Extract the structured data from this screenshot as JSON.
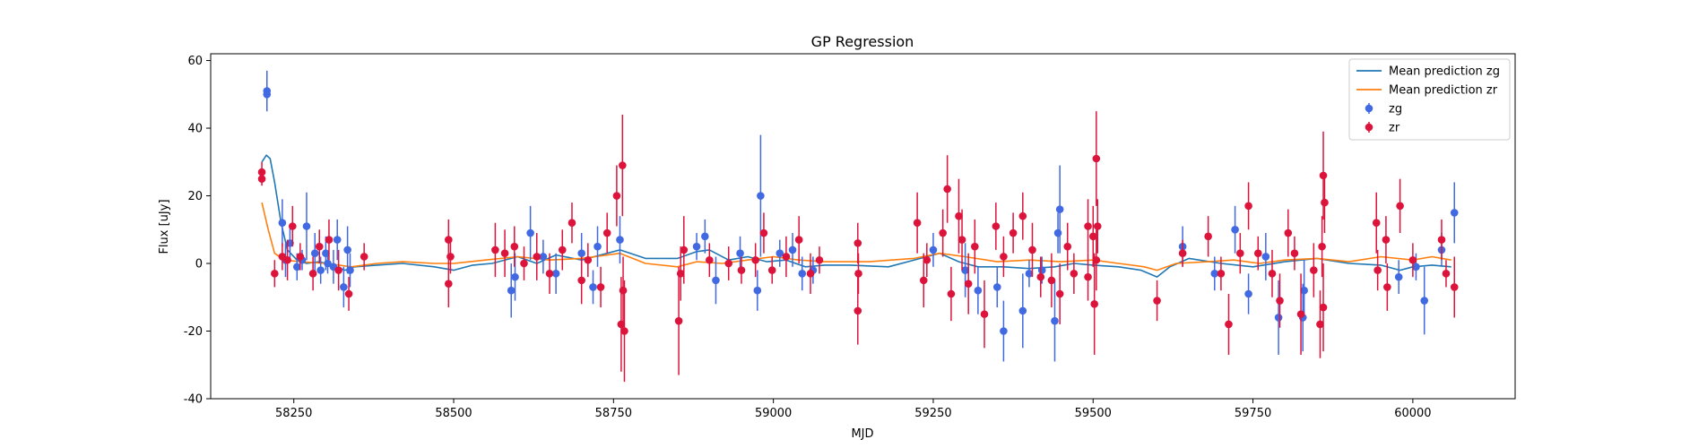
{
  "chart_data": {
    "type": "scatter",
    "title": "GP Regression",
    "xlabel": "MJD",
    "ylabel": "Flux [uJy]",
    "xlim": [
      58120,
      60160
    ],
    "ylim": [
      -40,
      62
    ],
    "xticks": [
      58250,
      58500,
      58750,
      59000,
      59250,
      59500,
      59750,
      60000
    ],
    "yticks": [
      -40,
      -20,
      0,
      20,
      40,
      60
    ],
    "grid": false,
    "legend_position": "top-right",
    "legend": [
      {
        "label": "Mean prediction zg",
        "kind": "line",
        "color": "#1f77b4"
      },
      {
        "label": "Mean prediction zr",
        "kind": "line",
        "color": "#ff7f0e"
      },
      {
        "label": "zg",
        "kind": "errorbar",
        "color": "#4169e1"
      },
      {
        "label": "zr",
        "kind": "errorbar",
        "color": "#dc143c"
      }
    ],
    "lines": [
      {
        "name": "Mean prediction zg",
        "color": "#1f77b4",
        "points": [
          [
            58200,
            30
          ],
          [
            58207,
            32
          ],
          [
            58213,
            31
          ],
          [
            58220,
            24
          ],
          [
            58230,
            12
          ],
          [
            58240,
            4
          ],
          [
            58255,
            1
          ],
          [
            58270,
            0
          ],
          [
            58290,
            0.5
          ],
          [
            58310,
            -0.5
          ],
          [
            58330,
            -2
          ],
          [
            58345,
            -1
          ],
          [
            58380,
            -0.5
          ],
          [
            58420,
            0
          ],
          [
            58470,
            -1
          ],
          [
            58500,
            -2
          ],
          [
            58530,
            -0.5
          ],
          [
            58560,
            0
          ],
          [
            58600,
            2
          ],
          [
            58630,
            0
          ],
          [
            58660,
            2.5
          ],
          [
            58700,
            1
          ],
          [
            58740,
            3
          ],
          [
            58760,
            4
          ],
          [
            58800,
            1.5
          ],
          [
            58850,
            1.5
          ],
          [
            58880,
            3.5
          ],
          [
            58900,
            4
          ],
          [
            58930,
            1
          ],
          [
            58960,
            2
          ],
          [
            58990,
            0.5
          ],
          [
            59020,
            1
          ],
          [
            59050,
            -1
          ],
          [
            59080,
            -0.5
          ],
          [
            59120,
            -0.5
          ],
          [
            59180,
            -1
          ],
          [
            59230,
            1.5
          ],
          [
            59260,
            3
          ],
          [
            59290,
            0.5
          ],
          [
            59320,
            -1
          ],
          [
            59360,
            -1
          ],
          [
            59400,
            -1.5
          ],
          [
            59440,
            -1
          ],
          [
            59470,
            0
          ],
          [
            59500,
            -0.5
          ],
          [
            59540,
            -1
          ],
          [
            59575,
            -2
          ],
          [
            59600,
            -4
          ],
          [
            59620,
            -1
          ],
          [
            59650,
            1.5
          ],
          [
            59700,
            0
          ],
          [
            59750,
            -1
          ],
          [
            59800,
            0.5
          ],
          [
            59850,
            1.5
          ],
          [
            59900,
            0
          ],
          [
            59950,
            -0.5
          ],
          [
            59980,
            -2
          ],
          [
            60000,
            -1
          ],
          [
            60030,
            -0.5
          ],
          [
            60060,
            -1
          ]
        ]
      },
      {
        "name": "Mean prediction zr",
        "color": "#ff7f0e",
        "points": [
          [
            58200,
            18
          ],
          [
            58210,
            10
          ],
          [
            58220,
            3
          ],
          [
            58235,
            1
          ],
          [
            58260,
            0.5
          ],
          [
            58300,
            0
          ],
          [
            58340,
            -1
          ],
          [
            58380,
            0
          ],
          [
            58420,
            0.5
          ],
          [
            58470,
            0
          ],
          [
            58500,
            0
          ],
          [
            58550,
            1
          ],
          [
            58600,
            2
          ],
          [
            58650,
            1
          ],
          [
            58700,
            1.5
          ],
          [
            58760,
            3
          ],
          [
            58800,
            0
          ],
          [
            58850,
            -1
          ],
          [
            58880,
            0.5
          ],
          [
            58920,
            0
          ],
          [
            58960,
            1
          ],
          [
            59000,
            2
          ],
          [
            59040,
            1
          ],
          [
            59080,
            0.5
          ],
          [
            59150,
            0.5
          ],
          [
            59220,
            1.5
          ],
          [
            59260,
            3
          ],
          [
            59300,
            2
          ],
          [
            59350,
            0.5
          ],
          [
            59400,
            1
          ],
          [
            59450,
            0.5
          ],
          [
            59500,
            1
          ],
          [
            59540,
            0
          ],
          [
            59580,
            -1
          ],
          [
            59600,
            -2
          ],
          [
            59630,
            0
          ],
          [
            59680,
            0.5
          ],
          [
            59720,
            1
          ],
          [
            59760,
            0
          ],
          [
            59800,
            1
          ],
          [
            59850,
            1.5
          ],
          [
            59900,
            0.5
          ],
          [
            59950,
            2
          ],
          [
            60000,
            1
          ],
          [
            60030,
            2
          ],
          [
            60060,
            1
          ]
        ]
      }
    ],
    "series": [
      {
        "name": "zg",
        "color": "#4169e1",
        "points": [
          [
            58208,
            51,
            6
          ],
          [
            58208,
            50,
            5
          ],
          [
            58232,
            12,
            7
          ],
          [
            58237,
            1,
            5
          ],
          [
            58244,
            6,
            5
          ],
          [
            58255,
            -1,
            4
          ],
          [
            58263,
            1,
            3
          ],
          [
            58270,
            11,
            10
          ],
          [
            58283,
            3,
            6
          ],
          [
            58292,
            -2,
            4
          ],
          [
            58300,
            3,
            5
          ],
          [
            58303,
            0,
            3
          ],
          [
            58312,
            -1,
            5
          ],
          [
            58318,
            7,
            6
          ],
          [
            58328,
            -7,
            6
          ],
          [
            58334,
            4,
            7
          ],
          [
            58338,
            -2,
            5
          ],
          [
            58590,
            -8,
            8
          ],
          [
            58596,
            -4,
            7
          ],
          [
            58620,
            9,
            8
          ],
          [
            58640,
            2,
            5
          ],
          [
            58660,
            -3,
            6
          ],
          [
            58700,
            3,
            6
          ],
          [
            58718,
            -7,
            5
          ],
          [
            58725,
            5,
            6
          ],
          [
            58760,
            7,
            7
          ],
          [
            58880,
            5,
            4
          ],
          [
            58893,
            8,
            5
          ],
          [
            58910,
            -5,
            7
          ],
          [
            58948,
            3,
            5
          ],
          [
            58975,
            -8,
            6
          ],
          [
            58980,
            20,
            18
          ],
          [
            59010,
            3,
            4
          ],
          [
            59030,
            4,
            5
          ],
          [
            59045,
            -3,
            5
          ],
          [
            59062,
            -2,
            4
          ],
          [
            59250,
            4,
            5
          ],
          [
            59300,
            -2,
            8
          ],
          [
            59320,
            -8,
            7
          ],
          [
            59350,
            -7,
            6
          ],
          [
            59360,
            -20,
            9
          ],
          [
            59390,
            -14,
            11
          ],
          [
            59400,
            -3,
            4
          ],
          [
            59420,
            -2,
            4
          ],
          [
            59440,
            -17,
            12
          ],
          [
            59445,
            9,
            6
          ],
          [
            59448,
            16,
            13
          ],
          [
            59640,
            5,
            6
          ],
          [
            59690,
            -3,
            5
          ],
          [
            59722,
            10,
            7
          ],
          [
            59743,
            -9,
            6
          ],
          [
            59770,
            2,
            7
          ],
          [
            59790,
            -16,
            11
          ],
          [
            59830,
            -8,
            9
          ],
          [
            59828,
            -16,
            10
          ],
          [
            59978,
            -4,
            5
          ],
          [
            60005,
            -1,
            4
          ],
          [
            60018,
            -11,
            10
          ],
          [
            60045,
            4,
            5
          ],
          [
            60065,
            15,
            9
          ]
        ]
      },
      {
        "name": "zr",
        "color": "#dc143c",
        "points": [
          [
            58200,
            27,
            3
          ],
          [
            58200,
            25,
            2
          ],
          [
            58220,
            -3,
            4
          ],
          [
            58232,
            2,
            4
          ],
          [
            58240,
            1,
            6
          ],
          [
            58248,
            11,
            6
          ],
          [
            58260,
            2,
            4
          ],
          [
            58280,
            -3,
            5
          ],
          [
            58290,
            5,
            5
          ],
          [
            58305,
            7,
            6
          ],
          [
            58320,
            -2,
            6
          ],
          [
            58336,
            -9,
            5
          ],
          [
            58360,
            2,
            4
          ],
          [
            58492,
            7,
            6
          ],
          [
            58492,
            -6,
            7
          ],
          [
            58495,
            2,
            5
          ],
          [
            58565,
            4,
            8
          ],
          [
            58580,
            3,
            7
          ],
          [
            58595,
            5,
            6
          ],
          [
            58610,
            0,
            5
          ],
          [
            58630,
            2,
            7
          ],
          [
            58650,
            -3,
            6
          ],
          [
            58670,
            4,
            6
          ],
          [
            58685,
            12,
            6
          ],
          [
            58700,
            -5,
            7
          ],
          [
            58710,
            1,
            5
          ],
          [
            58730,
            -7,
            6
          ],
          [
            58740,
            9,
            6
          ],
          [
            58755,
            20,
            9
          ],
          [
            58762,
            -18,
            14
          ],
          [
            58764,
            29,
            15
          ],
          [
            58767,
            -20,
            15
          ],
          [
            58765,
            -8,
            10
          ],
          [
            58852,
            -17,
            16
          ],
          [
            58855,
            -3,
            8
          ],
          [
            58860,
            4,
            10
          ],
          [
            58900,
            1,
            5
          ],
          [
            58930,
            0,
            5
          ],
          [
            58950,
            -2,
            4
          ],
          [
            58972,
            1,
            5
          ],
          [
            58985,
            9,
            6
          ],
          [
            58998,
            -2,
            4
          ],
          [
            59020,
            2,
            6
          ],
          [
            59040,
            7,
            7
          ],
          [
            59058,
            -3,
            6
          ],
          [
            59072,
            1,
            4
          ],
          [
            59132,
            6,
            6
          ],
          [
            59133,
            -3,
            6
          ],
          [
            59132,
            -14,
            10
          ],
          [
            59225,
            12,
            9
          ],
          [
            59235,
            -5,
            8
          ],
          [
            59240,
            1,
            5
          ],
          [
            59265,
            9,
            7
          ],
          [
            59272,
            22,
            10
          ],
          [
            59278,
            -9,
            8
          ],
          [
            59290,
            14,
            11
          ],
          [
            59295,
            7,
            9
          ],
          [
            59305,
            -6,
            9
          ],
          [
            59315,
            5,
            8
          ],
          [
            59330,
            -15,
            10
          ],
          [
            59348,
            11,
            7
          ],
          [
            59360,
            2,
            6
          ],
          [
            59375,
            9,
            6
          ],
          [
            59390,
            14,
            7
          ],
          [
            59405,
            4,
            8
          ],
          [
            59418,
            -4,
            6
          ],
          [
            59435,
            -5,
            8
          ],
          [
            59448,
            -9,
            9
          ],
          [
            59460,
            5,
            7
          ],
          [
            59470,
            -3,
            6
          ],
          [
            59492,
            11,
            8
          ],
          [
            59492,
            -4,
            7
          ],
          [
            59500,
            8,
            9
          ],
          [
            59502,
            -12,
            15
          ],
          [
            59505,
            31,
            14
          ],
          [
            59507,
            11,
            8
          ],
          [
            59505,
            1,
            9
          ],
          [
            59600,
            -11,
            6
          ],
          [
            59640,
            3,
            4
          ],
          [
            59680,
            8,
            6
          ],
          [
            59700,
            -3,
            5
          ],
          [
            59712,
            -18,
            9
          ],
          [
            59730,
            3,
            6
          ],
          [
            59743,
            17,
            7
          ],
          [
            59758,
            3,
            5
          ],
          [
            59780,
            -3,
            7
          ],
          [
            59792,
            -11,
            8
          ],
          [
            59805,
            9,
            7
          ],
          [
            59815,
            3,
            5
          ],
          [
            59825,
            -15,
            12
          ],
          [
            59845,
            -2,
            8
          ],
          [
            59855,
            -18,
            10
          ],
          [
            59860,
            26,
            13
          ],
          [
            59862,
            18,
            9
          ],
          [
            59860,
            -13,
            13
          ],
          [
            59858,
            5,
            9
          ],
          [
            59943,
            12,
            9
          ],
          [
            59945,
            -2,
            6
          ],
          [
            59958,
            7,
            7
          ],
          [
            59960,
            -7,
            7
          ],
          [
            59980,
            17,
            8
          ],
          [
            60000,
            1,
            5
          ],
          [
            60045,
            7,
            6
          ],
          [
            60052,
            -3,
            4
          ],
          [
            60065,
            -7,
            9
          ]
        ]
      }
    ]
  }
}
